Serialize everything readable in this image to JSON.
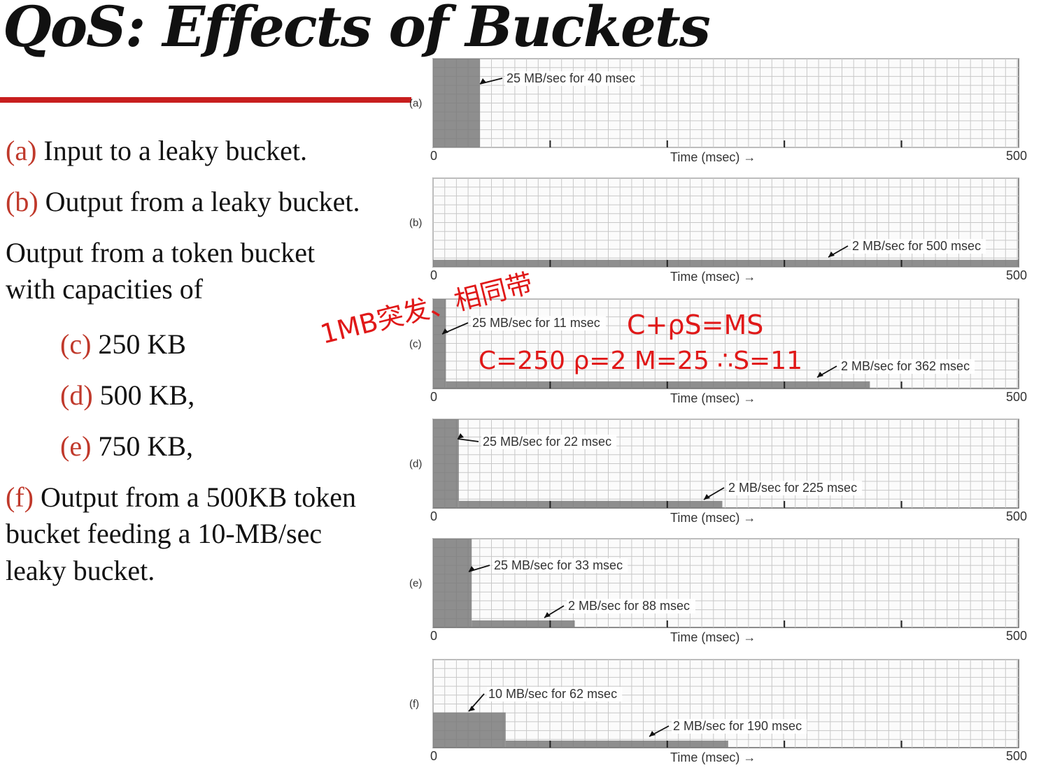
{
  "slide": {
    "title": "QoS: Effects of Buckets",
    "items": [
      {
        "label": "(a)",
        "text": " Input to a leaky bucket."
      },
      {
        "label": "(b)",
        "text": " Output from a leaky bucket."
      },
      {
        "text": "Output from a token bucket with capacities of"
      },
      {
        "label": "(c)",
        "text": " 250 KB"
      },
      {
        "label": "(d)",
        "text": " 500 KB,"
      },
      {
        "label": "(e)",
        "text": " 750 KB,"
      },
      {
        "label": "(f)",
        "text": " Output from a 500KB token bucket feeding a 10-MB/sec leaky bucket."
      }
    ],
    "colors": {
      "accent_rule": "#c81e1e",
      "label_red": "#c0392b",
      "handwriting": "#e01818",
      "bar_fill": "#7a7a7a"
    }
  },
  "handwriting": {
    "line1": "1MB突发、相同带",
    "line2": "C+ρS=MS",
    "line3": "C=250  ρ=2  M=25  ∴S=11"
  },
  "chart_data": [
    {
      "type": "area",
      "panel": "(a)",
      "xlabel": "Time (msec) →",
      "xlim": [
        0,
        500
      ],
      "x_ticks": [
        "0",
        "500"
      ],
      "segments": [
        {
          "rate_MB_per_sec": 25,
          "start_msec": 0,
          "duration_msec": 40
        }
      ],
      "annotations": [
        {
          "text": "25 MB/sec for 40 msec"
        }
      ]
    },
    {
      "type": "area",
      "panel": "(b)",
      "xlabel": "Time (msec) →",
      "xlim": [
        0,
        500
      ],
      "x_ticks": [
        "0",
        "500"
      ],
      "segments": [
        {
          "rate_MB_per_sec": 2,
          "start_msec": 0,
          "duration_msec": 500
        }
      ],
      "annotations": [
        {
          "text": "2 MB/sec for 500 msec"
        }
      ]
    },
    {
      "type": "area",
      "panel": "(c)",
      "xlabel": "Time (msec) →",
      "xlim": [
        0,
        500
      ],
      "x_ticks": [
        "0",
        "500"
      ],
      "segments": [
        {
          "rate_MB_per_sec": 25,
          "start_msec": 0,
          "duration_msec": 11
        },
        {
          "rate_MB_per_sec": 2,
          "start_msec": 11,
          "duration_msec": 362
        }
      ],
      "annotations": [
        {
          "text": "25 MB/sec for 11 msec"
        },
        {
          "text": "2 MB/sec for 362 msec"
        }
      ]
    },
    {
      "type": "area",
      "panel": "(d)",
      "xlabel": "Time (msec) →",
      "xlim": [
        0,
        500
      ],
      "x_ticks": [
        "0",
        "500"
      ],
      "segments": [
        {
          "rate_MB_per_sec": 25,
          "start_msec": 0,
          "duration_msec": 22
        },
        {
          "rate_MB_per_sec": 2,
          "start_msec": 22,
          "duration_msec": 225
        }
      ],
      "annotations": [
        {
          "text": "25 MB/sec for 22 msec"
        },
        {
          "text": "2 MB/sec for 225 msec"
        }
      ]
    },
    {
      "type": "area",
      "panel": "(e)",
      "xlabel": "Time (msec) →",
      "xlim": [
        0,
        500
      ],
      "x_ticks": [
        "0",
        "500"
      ],
      "segments": [
        {
          "rate_MB_per_sec": 25,
          "start_msec": 0,
          "duration_msec": 33
        },
        {
          "rate_MB_per_sec": 2,
          "start_msec": 33,
          "duration_msec": 88
        }
      ],
      "annotations": [
        {
          "text": "25 MB/sec for 33 msec"
        },
        {
          "text": "2 MB/sec for 88 msec"
        }
      ]
    },
    {
      "type": "area",
      "panel": "(f)",
      "xlabel": "Time (msec) →",
      "xlim": [
        0,
        500
      ],
      "x_ticks": [
        "0",
        "500"
      ],
      "segments": [
        {
          "rate_MB_per_sec": 10,
          "start_msec": 0,
          "duration_msec": 62
        },
        {
          "rate_MB_per_sec": 2,
          "start_msec": 62,
          "duration_msec": 190
        }
      ],
      "annotations": [
        {
          "text": "10 MB/sec for 62 msec"
        },
        {
          "text": "2 MB/sec for 190 msec"
        }
      ]
    }
  ]
}
